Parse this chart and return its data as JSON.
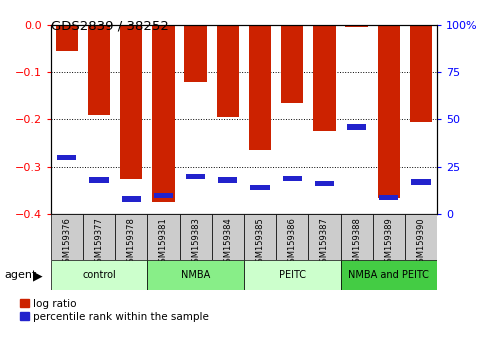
{
  "title": "GDS2839 / 38252",
  "samples": [
    "GSM159376",
    "GSM159377",
    "GSM159378",
    "GSM159381",
    "GSM159383",
    "GSM159384",
    "GSM159385",
    "GSM159386",
    "GSM159387",
    "GSM159388",
    "GSM159389",
    "GSM159390"
  ],
  "log_ratio": [
    -0.055,
    -0.19,
    -0.325,
    -0.375,
    -0.12,
    -0.195,
    -0.265,
    -0.165,
    -0.225,
    -0.005,
    -0.365,
    -0.205
  ],
  "percentile": [
    30,
    18,
    8,
    10,
    20,
    18,
    14,
    19,
    16,
    46,
    9,
    17
  ],
  "bar_color": "#cc2200",
  "marker_color": "#2222cc",
  "ylim_left": [
    -0.4,
    0.0
  ],
  "ylim_right": [
    0,
    100
  ],
  "yticks_left": [
    0,
    -0.1,
    -0.2,
    -0.3,
    -0.4
  ],
  "yticks_right": [
    0,
    25,
    50,
    75,
    100
  ],
  "groups": [
    {
      "label": "control",
      "start": 0,
      "end": 2,
      "color": "#ccffcc"
    },
    {
      "label": "NMBA",
      "start": 3,
      "end": 5,
      "color": "#88ee88"
    },
    {
      "label": "PEITC",
      "start": 6,
      "end": 8,
      "color": "#ccffcc"
    },
    {
      "label": "NMBA and PEITC",
      "start": 9,
      "end": 11,
      "color": "#44cc44"
    }
  ],
  "agent_label": "agent",
  "legend_items": [
    {
      "label": "log ratio",
      "color": "#cc2200"
    },
    {
      "label": "percentile rank within the sample",
      "color": "#2222cc"
    }
  ],
  "background_color": "#ffffff",
  "tick_label_bg": "#cccccc",
  "bar_width": 0.7
}
